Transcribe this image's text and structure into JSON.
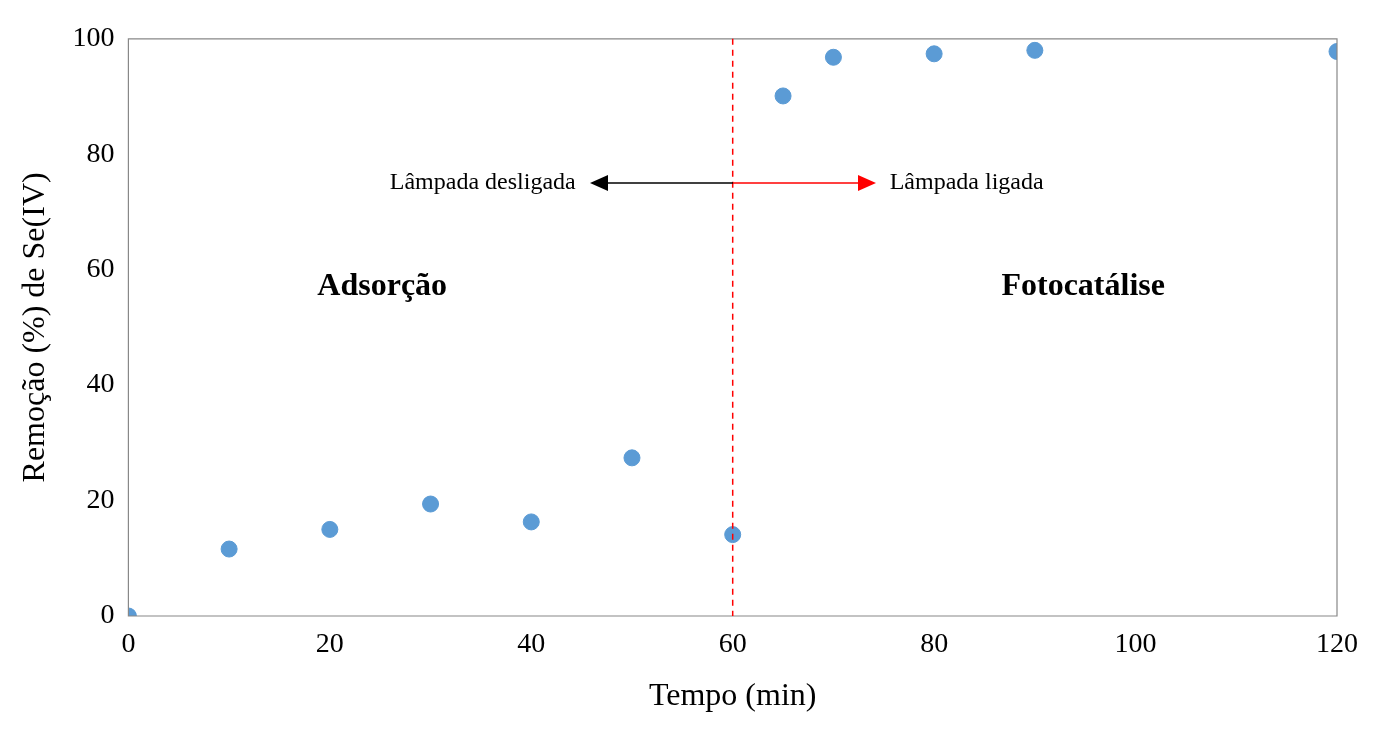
{
  "chart_data": {
    "type": "scatter",
    "xlabel": "Tempo (min)",
    "ylabel": "Remoção (%) de Se(IV)",
    "x": [
      0,
      10,
      20,
      30,
      40,
      50,
      60,
      65,
      70,
      80,
      90,
      120
    ],
    "series": [
      {
        "color": "#5b9bd5",
        "values": [
          0,
          11.6,
          15.0,
          19.4,
          16.3,
          27.4,
          14.1,
          90.1,
          96.8,
          97.4,
          98.0,
          97.8
        ]
      }
    ],
    "xlim": [
      0,
      120
    ],
    "xticks": [
      0,
      20,
      40,
      60,
      80,
      100,
      120
    ],
    "ylim": [
      0,
      100
    ],
    "yticks": [
      0,
      20,
      40,
      60,
      80,
      100
    ],
    "grid": false,
    "legend": false,
    "marker": "circle",
    "ref_lines": [
      {
        "axis": "x",
        "value": 60,
        "color": "#ff0000",
        "line_style": "dashed"
      }
    ],
    "annotations": [
      {
        "text": "Lâmpada desligada",
        "x": 60,
        "y": 75
      },
      {
        "text": "Lâmpada ligada",
        "x": 60,
        "y": 75
      },
      "Adsorção",
      "Fotocatálise"
    ]
  }
}
